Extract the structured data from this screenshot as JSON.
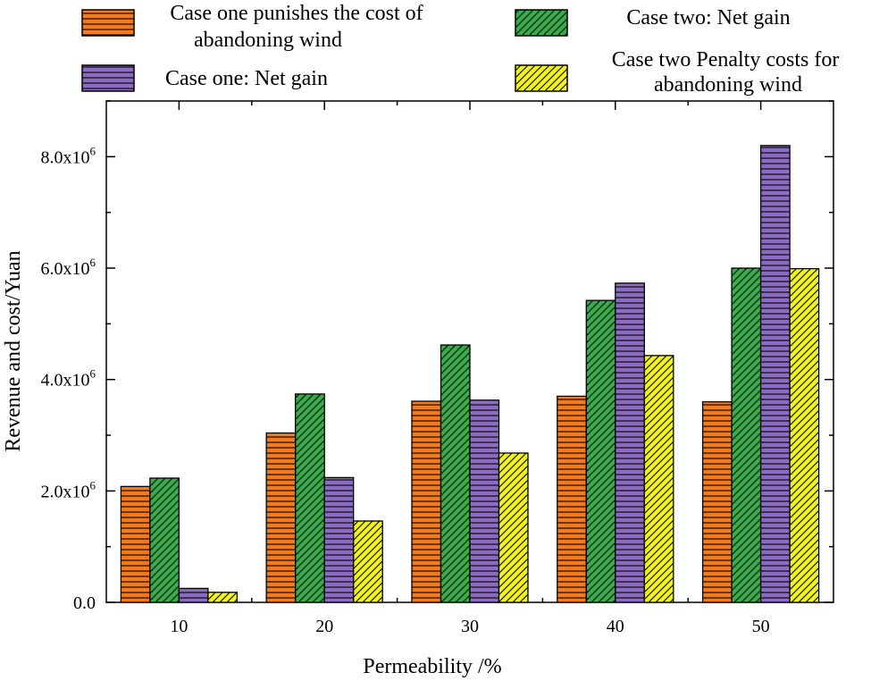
{
  "chart_data": {
    "type": "bar",
    "xlabel": "Permeability /%",
    "ylabel": "Revenue and cost/Yuan",
    "categories": [
      "10",
      "20",
      "30",
      "40",
      "50"
    ],
    "ylim": [
      0,
      9000000
    ],
    "yticks": [
      {
        "value": 0,
        "label": "0.0"
      },
      {
        "value": 2000000,
        "label": "2.0x10",
        "exp": "6"
      },
      {
        "value": 4000000,
        "label": "4.0x10",
        "exp": "6"
      },
      {
        "value": 6000000,
        "label": "6.0x10",
        "exp": "6"
      },
      {
        "value": 8000000,
        "label": "8.0x10",
        "exp": "6"
      }
    ],
    "series": [
      {
        "name": "Case one punishes the cost of abandoning wind",
        "legend_lines": [
          "Case one punishes the cost of",
          "abandoning wind"
        ],
        "color": "#f47a20",
        "pattern": "horizontal",
        "values": [
          2080000,
          3040000,
          3610000,
          3700000,
          3600000
        ]
      },
      {
        "name": "Case two: Net gain",
        "legend_lines": [
          "Case two: Net gain"
        ],
        "color": "#3aab4a",
        "pattern": "diagonal",
        "values": [
          2230000,
          3740000,
          4620000,
          5420000,
          6000000
        ]
      },
      {
        "name": "Case one: Net gain",
        "legend_lines": [
          "Case one: Net gain"
        ],
        "color": "#8b6cc0",
        "pattern": "horizontal",
        "values": [
          250000,
          2240000,
          3630000,
          5730000,
          8200000
        ]
      },
      {
        "name": "Case two Penalty costs for abandoning wind",
        "legend_lines": [
          "Case two Penalty costs for",
          "abandoning wind"
        ],
        "color": "#f2f220",
        "pattern": "diagonal",
        "values": [
          180000,
          1460000,
          2680000,
          4430000,
          5990000
        ]
      }
    ]
  }
}
